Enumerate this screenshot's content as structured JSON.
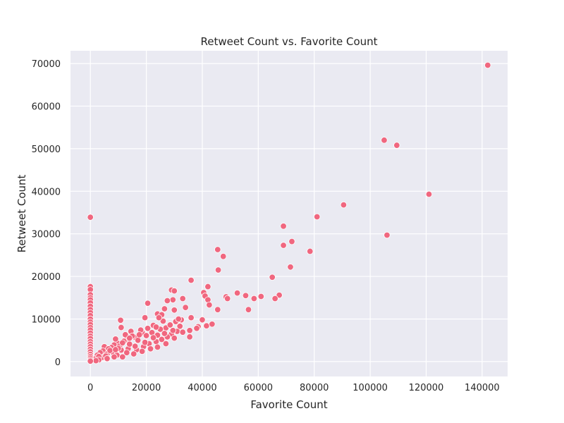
{
  "chart_data": {
    "type": "scatter",
    "title": "Retweet Count vs. Favorite Count",
    "xlabel": "Favorite Count",
    "ylabel": "Retweet Count",
    "xlim": [
      -7100,
      149100
    ],
    "ylim": [
      -3500,
      73000
    ],
    "xticks": [
      0,
      20000,
      40000,
      60000,
      80000,
      100000,
      120000,
      140000
    ],
    "yticks": [
      0,
      10000,
      20000,
      30000,
      40000,
      50000,
      60000,
      70000
    ],
    "grid": true,
    "colors": {
      "background": "#EAEAF2",
      "grid": "#FFFFFF",
      "marker": "#F0677F",
      "marker_edge": "#FFFFFF"
    },
    "points": [
      [
        142000,
        69600
      ],
      [
        105000,
        52000
      ],
      [
        109500,
        50800
      ],
      [
        121000,
        39300
      ],
      [
        90500,
        36800
      ],
      [
        81000,
        34000
      ],
      [
        69000,
        31800
      ],
      [
        106000,
        29700
      ],
      [
        72000,
        28200
      ],
      [
        69000,
        27300
      ],
      [
        45500,
        26300
      ],
      [
        78500,
        25900
      ],
      [
        47500,
        24700
      ],
      [
        71500,
        22200
      ],
      [
        45700,
        21500
      ],
      [
        65000,
        19800
      ],
      [
        36000,
        19100
      ],
      [
        42000,
        17600
      ],
      [
        29000,
        16800
      ],
      [
        30000,
        16600
      ],
      [
        52500,
        16100
      ],
      [
        40500,
        16200
      ],
      [
        55500,
        15500
      ],
      [
        41000,
        15400
      ],
      [
        61000,
        15300
      ],
      [
        67500,
        15600
      ],
      [
        48500,
        15200
      ],
      [
        49000,
        14800
      ],
      [
        58500,
        14800
      ],
      [
        66000,
        14800
      ],
      [
        42000,
        14500
      ],
      [
        29500,
        14500
      ],
      [
        33000,
        14800
      ],
      [
        27500,
        14300
      ],
      [
        42500,
        13300
      ],
      [
        20500,
        13700
      ],
      [
        34000,
        12700
      ],
      [
        45500,
        12200
      ],
      [
        56500,
        12200
      ],
      [
        30000,
        12100
      ],
      [
        26500,
        12400
      ],
      [
        24000,
        11200
      ],
      [
        25500,
        11000
      ],
      [
        19500,
        10300
      ],
      [
        36000,
        10300
      ],
      [
        10800,
        9700
      ],
      [
        40000,
        9800
      ],
      [
        38500,
        8200
      ],
      [
        41500,
        8400
      ],
      [
        43500,
        8800
      ],
      [
        30500,
        9400
      ],
      [
        32500,
        9800
      ],
      [
        35500,
        7300
      ],
      [
        38000,
        7800
      ],
      [
        35500,
        5800
      ],
      [
        27000,
        7900
      ],
      [
        31000,
        7100
      ],
      [
        29000,
        6500
      ],
      [
        24000,
        6200
      ],
      [
        22500,
        8500
      ],
      [
        18500,
        6800
      ],
      [
        14500,
        7100
      ],
      [
        11000,
        8000
      ],
      [
        16000,
        5700
      ],
      [
        13000,
        5200
      ],
      [
        12000,
        4800
      ],
      [
        9500,
        4400
      ],
      [
        8500,
        3900
      ],
      [
        10500,
        3700
      ],
      [
        7500,
        3300
      ],
      [
        5000,
        3500
      ],
      [
        6500,
        3000
      ],
      [
        4500,
        2500
      ],
      [
        3500,
        2100
      ],
      [
        2500,
        1500
      ],
      [
        4000,
        900
      ],
      [
        1500,
        600
      ],
      [
        3000,
        1200
      ],
      [
        6000,
        1800
      ],
      [
        8000,
        2200
      ],
      [
        11000,
        2700
      ],
      [
        13500,
        3000
      ],
      [
        16500,
        2800
      ],
      [
        19000,
        3500
      ],
      [
        21000,
        4200
      ],
      [
        23500,
        4700
      ],
      [
        25500,
        5200
      ],
      [
        27500,
        5800
      ],
      [
        14000,
        4100
      ],
      [
        17000,
        5000
      ],
      [
        20000,
        6100
      ],
      [
        22000,
        6800
      ],
      [
        25000,
        7600
      ],
      [
        28500,
        8600
      ],
      [
        31500,
        10000
      ],
      [
        26000,
        9500
      ],
      [
        23500,
        8100
      ],
      [
        18000,
        7400
      ],
      [
        12500,
        6300
      ],
      [
        9000,
        5300
      ],
      [
        7000,
        2600
      ],
      [
        5500,
        1300
      ],
      [
        9500,
        1500
      ],
      [
        15500,
        1800
      ],
      [
        11500,
        1100
      ],
      [
        13000,
        2100
      ],
      [
        16000,
        3600
      ],
      [
        19500,
        4500
      ],
      [
        24000,
        3400
      ],
      [
        27000,
        4200
      ],
      [
        30000,
        5500
      ],
      [
        33000,
        6900
      ],
      [
        21500,
        3000
      ],
      [
        18500,
        2400
      ],
      [
        15000,
        6000
      ],
      [
        10000,
        3100
      ],
      [
        8500,
        1100
      ],
      [
        6000,
        700
      ],
      [
        3000,
        400
      ],
      [
        2000,
        200
      ],
      [
        22500,
        5600
      ],
      [
        26500,
        6600
      ],
      [
        29500,
        7300
      ],
      [
        32000,
        8300
      ],
      [
        24500,
        10300
      ],
      [
        20500,
        7800
      ],
      [
        17500,
        6300
      ],
      [
        14000,
        5500
      ],
      [
        11500,
        4400
      ],
      [
        9000,
        2800
      ],
      [
        0,
        33900
      ],
      [
        0,
        17600
      ],
      [
        0,
        16900
      ],
      [
        0,
        15700
      ],
      [
        0,
        15000
      ],
      [
        0,
        14500
      ],
      [
        0,
        13800
      ],
      [
        0,
        13000
      ],
      [
        0,
        12200
      ],
      [
        0,
        11500
      ],
      [
        0,
        10800
      ],
      [
        0,
        10000
      ],
      [
        0,
        9300
      ],
      [
        0,
        8700
      ],
      [
        0,
        8000
      ],
      [
        0,
        7400
      ],
      [
        0,
        6700
      ],
      [
        0,
        6000
      ],
      [
        0,
        5400
      ],
      [
        0,
        4700
      ],
      [
        0,
        4100
      ],
      [
        0,
        3500
      ],
      [
        0,
        2900
      ],
      [
        0,
        2300
      ],
      [
        0,
        1700
      ],
      [
        0,
        1200
      ],
      [
        0,
        800
      ],
      [
        0,
        400
      ],
      [
        0,
        100
      ]
    ]
  }
}
